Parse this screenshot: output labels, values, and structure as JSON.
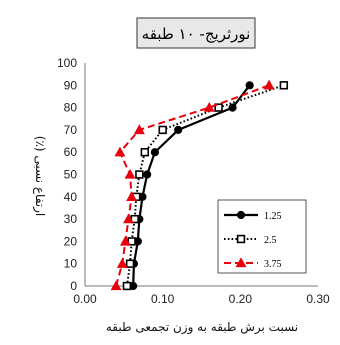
{
  "chart_data": {
    "type": "line",
    "title": "نورثریج- ۱۰ طبقه",
    "xlabel": "نسبت برش طبقه به وزن تجمعی طبقه",
    "ylabel": "ارتفاع نسبی (٪)",
    "xlim": [
      0,
      0.3
    ],
    "ylim": [
      0,
      100
    ],
    "x_ticks": [
      "0.00",
      "0.10",
      "0.20",
      "0.30"
    ],
    "y_ticks": [
      "0",
      "10",
      "20",
      "30",
      "40",
      "50",
      "60",
      "70",
      "80",
      "90",
      "100"
    ],
    "grid": false,
    "legend_position": "bottom-right",
    "series": [
      {
        "name": "1.25",
        "color": "#000000",
        "line_style": "solid",
        "marker": "circle",
        "points": [
          {
            "x": 0.062,
            "y": 0
          },
          {
            "x": 0.063,
            "y": 10
          },
          {
            "x": 0.068,
            "y": 20
          },
          {
            "x": 0.07,
            "y": 30
          },
          {
            "x": 0.074,
            "y": 40
          },
          {
            "x": 0.08,
            "y": 50
          },
          {
            "x": 0.09,
            "y": 60
          },
          {
            "x": 0.12,
            "y": 70
          },
          {
            "x": 0.19,
            "y": 80
          },
          {
            "x": 0.212,
            "y": 90
          }
        ]
      },
      {
        "name": "2.5",
        "color": "#000000",
        "line_style": "dotted",
        "marker": "square-open",
        "points": [
          {
            "x": 0.054,
            "y": 0
          },
          {
            "x": 0.058,
            "y": 10
          },
          {
            "x": 0.06,
            "y": 20
          },
          {
            "x": 0.064,
            "y": 30
          },
          {
            "x": 0.066,
            "y": 40
          },
          {
            "x": 0.07,
            "y": 50
          },
          {
            "x": 0.077,
            "y": 60
          },
          {
            "x": 0.1,
            "y": 70
          },
          {
            "x": 0.172,
            "y": 80
          },
          {
            "x": 0.256,
            "y": 90
          }
        ]
      },
      {
        "name": "3.75",
        "color": "#e8000b",
        "line_style": "dashed",
        "marker": "triangle",
        "points": [
          {
            "x": 0.04,
            "y": 0
          },
          {
            "x": 0.048,
            "y": 10
          },
          {
            "x": 0.052,
            "y": 20
          },
          {
            "x": 0.056,
            "y": 30
          },
          {
            "x": 0.06,
            "y": 40
          },
          {
            "x": 0.058,
            "y": 50
          },
          {
            "x": 0.045,
            "y": 60
          },
          {
            "x": 0.07,
            "y": 70
          },
          {
            "x": 0.16,
            "y": 80
          },
          {
            "x": 0.237,
            "y": 90
          }
        ]
      }
    ]
  }
}
